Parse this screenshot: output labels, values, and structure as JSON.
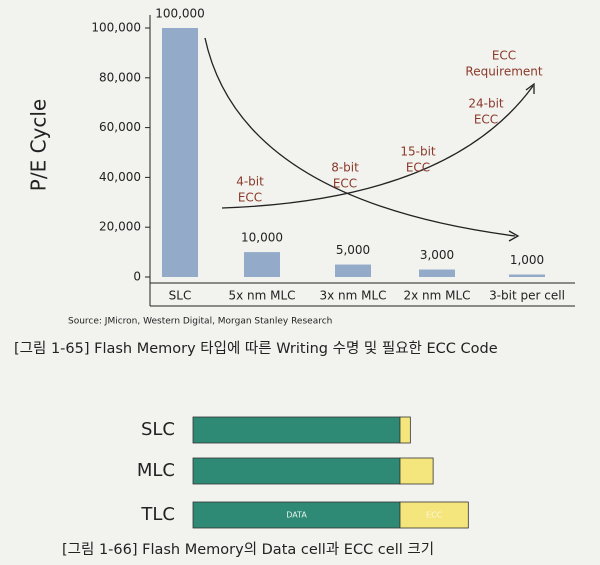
{
  "chart_data": [
    {
      "type": "bar",
      "ylabel": "P/E Cycle",
      "categories": [
        "SLC",
        "5x nm MLC",
        "3x nm MLC",
        "2x nm MLC",
        "3-bit per cell"
      ],
      "values": [
        100000,
        10000,
        5000,
        3000,
        1000
      ],
      "value_labels": [
        "100,000",
        "10,000",
        "5,000",
        "3,000",
        "1,000"
      ],
      "color": "#93abc9",
      "ylim": [
        0,
        100000
      ],
      "yticks": [
        0,
        {
          "value": 20000,
          "label": "20,000"
        },
        {
          "value": 40000,
          "label": "40,000"
        },
        {
          "value": 60000,
          "label": "60,000"
        },
        {
          "value": 80000,
          "label": "80,000"
        },
        {
          "value": 100000,
          "label": "100,000"
        }
      ],
      "annotations": [
        [
          "4-bit",
          "ECC"
        ],
        [
          "8-bit",
          "ECC"
        ],
        [
          "15-bit",
          "ECC"
        ],
        [
          "24-bit",
          "ECC"
        ],
        [
          "ECC",
          "Requirement"
        ]
      ],
      "source": "Source: JMicron, Western Digital, Morgan Stanley Research",
      "caption": "[그림 1-65] Flash Memory 타입에 따른 Writing 수명 및 필요한 ECC Code"
    },
    {
      "type": "hbar-stacked",
      "categories": [
        "SLC",
        "MLC",
        "TLC"
      ],
      "series": [
        {
          "name": "DATA",
          "color": "#2e8a74",
          "values": [
            100,
            100,
            100
          ]
        },
        {
          "name": "ECC",
          "color": "#f4e57c",
          "values": [
            5,
            16,
            33
          ]
        }
      ],
      "caption": "[그림 1-66] Flash Memory의 Data cell과 ECC cell 크기"
    }
  ]
}
